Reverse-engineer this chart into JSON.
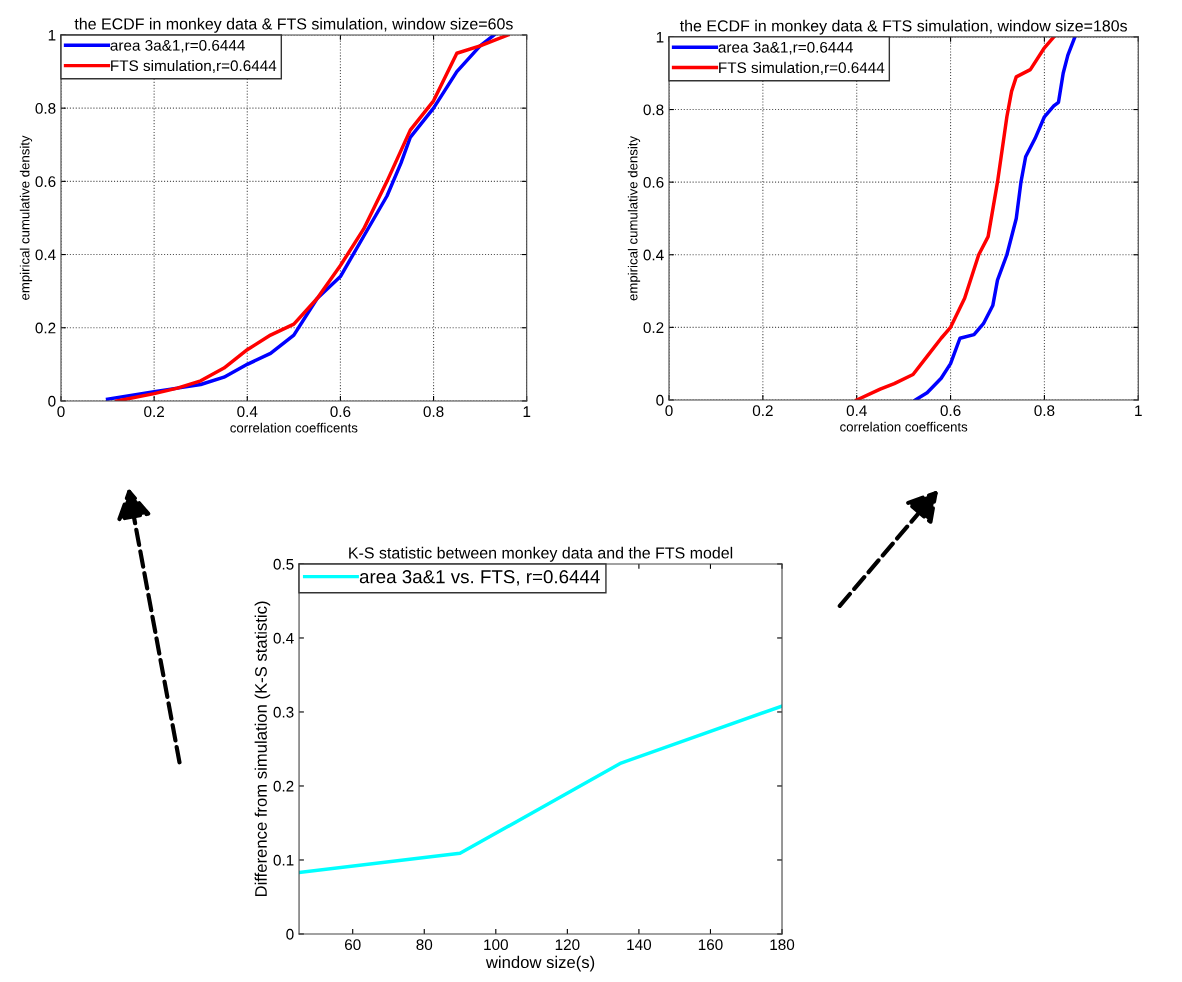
{
  "chart_data": [
    {
      "type": "line",
      "title": "the ECDF in monkey data & FTS simulation, window size=60s",
      "xlabel": "correlation coefficents",
      "ylabel": "empirical cumulative density",
      "xlim": [
        0,
        1
      ],
      "ylim": [
        0,
        1
      ],
      "xticks": [
        0,
        0.2,
        0.4,
        0.6,
        0.8,
        1
      ],
      "yticks": [
        0,
        0.2,
        0.4,
        0.6,
        0.8,
        1
      ],
      "grid": true,
      "legend": "top left",
      "series": [
        {
          "name": "area 3a&1,r=0.6444",
          "color": "#0000ff",
          "x": [
            0.1,
            0.2,
            0.25,
            0.3,
            0.35,
            0.4,
            0.45,
            0.5,
            0.55,
            0.6,
            0.65,
            0.7,
            0.73,
            0.75,
            0.8,
            0.85,
            0.9,
            0.93
          ],
          "values": [
            0.005,
            0.025,
            0.035,
            0.045,
            0.065,
            0.1,
            0.13,
            0.18,
            0.28,
            0.34,
            0.45,
            0.56,
            0.65,
            0.72,
            0.8,
            0.9,
            0.97,
            1.0
          ]
        },
        {
          "name": "FTS simulation,r=0.6444",
          "color": "#ff0000",
          "x": [
            0.12,
            0.2,
            0.25,
            0.3,
            0.35,
            0.4,
            0.45,
            0.5,
            0.55,
            0.6,
            0.65,
            0.7,
            0.75,
            0.8,
            0.85,
            0.9,
            0.93,
            0.96
          ],
          "values": [
            0.0,
            0.02,
            0.035,
            0.055,
            0.09,
            0.14,
            0.18,
            0.21,
            0.28,
            0.37,
            0.47,
            0.6,
            0.74,
            0.82,
            0.95,
            0.97,
            0.985,
            1.0
          ]
        }
      ]
    },
    {
      "type": "line",
      "title": "the ECDF in monkey data & FTS simulation, window size=180s",
      "xlabel": "correlation coefficents",
      "ylabel": "empirical cumulative density",
      "xlim": [
        0,
        1
      ],
      "ylim": [
        0,
        1
      ],
      "xticks": [
        0,
        0.2,
        0.4,
        0.6,
        0.8,
        1
      ],
      "yticks": [
        0,
        0.2,
        0.4,
        0.6,
        0.8,
        1
      ],
      "grid": true,
      "legend": "top left",
      "series": [
        {
          "name": "area 3a&1,r=0.6444",
          "color": "#0000ff",
          "x": [
            0.525,
            0.55,
            0.58,
            0.6,
            0.62,
            0.65,
            0.67,
            0.69,
            0.7,
            0.72,
            0.74,
            0.75,
            0.76,
            0.78,
            0.8,
            0.82,
            0.83,
            0.84,
            0.85,
            0.865
          ],
          "values": [
            0,
            0.02,
            0.06,
            0.1,
            0.17,
            0.18,
            0.21,
            0.26,
            0.33,
            0.4,
            0.5,
            0.6,
            0.67,
            0.72,
            0.78,
            0.81,
            0.82,
            0.9,
            0.95,
            1.0
          ]
        },
        {
          "name": "FTS simulation,r=0.6444",
          "color": "#ff0000",
          "x": [
            0.4,
            0.45,
            0.48,
            0.52,
            0.55,
            0.58,
            0.6,
            0.63,
            0.66,
            0.68,
            0.7,
            0.72,
            0.73,
            0.74,
            0.77,
            0.8,
            0.82
          ],
          "values": [
            0,
            0.03,
            0.045,
            0.07,
            0.12,
            0.17,
            0.2,
            0.28,
            0.4,
            0.45,
            0.6,
            0.78,
            0.85,
            0.89,
            0.91,
            0.97,
            1.0
          ]
        }
      ]
    },
    {
      "type": "line",
      "title": "K-S statistic between monkey data and the FTS model",
      "xlabel": "window size(s)",
      "ylabel": "Difference from simulation (K-S statistic)",
      "xlim": [
        45,
        180
      ],
      "ylim": [
        0,
        0.5
      ],
      "xticks": [
        60,
        80,
        100,
        120,
        140,
        160,
        180
      ],
      "yticks": [
        0,
        0.1,
        0.2,
        0.3,
        0.4,
        0.5
      ],
      "legend": "top left",
      "series": [
        {
          "name": "area 3a&1 vs. FTS, r=0.6444",
          "color": "#00ffff",
          "x": [
            45,
            90,
            135,
            180
          ],
          "values": [
            0.083,
            0.109,
            0.231,
            0.308
          ]
        }
      ]
    }
  ]
}
